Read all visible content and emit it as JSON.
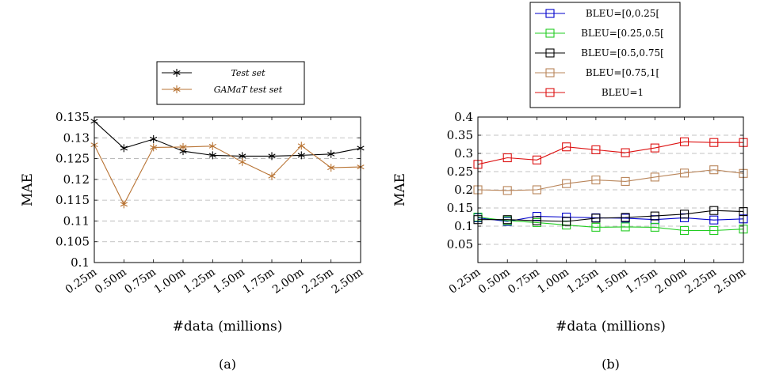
{
  "chart_data": [
    {
      "type": "line",
      "caption": "(a)",
      "xlabel": "#data (millions)",
      "ylabel": "MAE",
      "categories": [
        "0.25m",
        "0.50m",
        "0.75m",
        "1.00m",
        "1.25m",
        "1.50m",
        "1.75m",
        "2.00m",
        "2.25m",
        "2.50m"
      ],
      "ylim": [
        0.1,
        0.135
      ],
      "yticks": [
        0.1,
        0.105,
        0.11,
        0.115,
        0.12,
        0.125,
        0.13,
        0.135
      ],
      "grid": "horizontal dashed",
      "legend_position": "top",
      "series": [
        {
          "name": "Test set",
          "color": "#000000",
          "marker": "star",
          "values": [
            0.134,
            0.1275,
            0.1297,
            0.1268,
            0.1258,
            0.1256,
            0.1256,
            0.1258,
            0.1261,
            0.1275
          ]
        },
        {
          "name": "GAMaT test set",
          "color": "#B87333",
          "marker": "star",
          "values": [
            0.1283,
            0.114,
            0.1277,
            0.1278,
            0.128,
            0.1242,
            0.1208,
            0.1281,
            0.1228,
            0.123
          ]
        }
      ]
    },
    {
      "type": "line",
      "caption": "(b)",
      "xlabel": "#data (millions)",
      "ylabel": "MAE",
      "categories": [
        "0.25m",
        "0.50m",
        "0.75m",
        "1.00m",
        "1.25m",
        "1.50m",
        "1.75m",
        "2.00m",
        "2.25m",
        "2.50m"
      ],
      "ylim": [
        0,
        0.4
      ],
      "yticks": [
        0.05,
        0.1,
        0.15,
        0.2,
        0.25,
        0.3,
        0.35,
        0.4
      ],
      "grid": "horizontal dashed",
      "legend_position": "top",
      "series": [
        {
          "name": "BLEU=[0,0.25[",
          "color": "#0000CC",
          "marker": "square",
          "values": [
            0.123,
            0.113,
            0.127,
            0.125,
            0.123,
            0.122,
            0.118,
            0.123,
            0.117,
            0.12
          ]
        },
        {
          "name": "BLEU=[0.25,0.5[",
          "color": "#22CC22",
          "marker": "square",
          "values": [
            0.125,
            0.115,
            0.11,
            0.103,
            0.097,
            0.098,
            0.097,
            0.088,
            0.088,
            0.092
          ]
        },
        {
          "name": "BLEU=[0.5,0.75[",
          "color": "#000000",
          "marker": "square",
          "values": [
            0.118,
            0.118,
            0.115,
            0.113,
            0.122,
            0.124,
            0.128,
            0.133,
            0.143,
            0.14
          ]
        },
        {
          "name": "BLEU=[0.75,1[",
          "color": "#B9855A",
          "marker": "square",
          "values": [
            0.2,
            0.198,
            0.2,
            0.217,
            0.227,
            0.223,
            0.235,
            0.246,
            0.255,
            0.245
          ]
        },
        {
          "name": "BLEU=1",
          "color": "#DD1111",
          "marker": "square",
          "values": [
            0.27,
            0.288,
            0.282,
            0.318,
            0.31,
            0.302,
            0.315,
            0.332,
            0.33,
            0.33
          ]
        }
      ]
    }
  ]
}
